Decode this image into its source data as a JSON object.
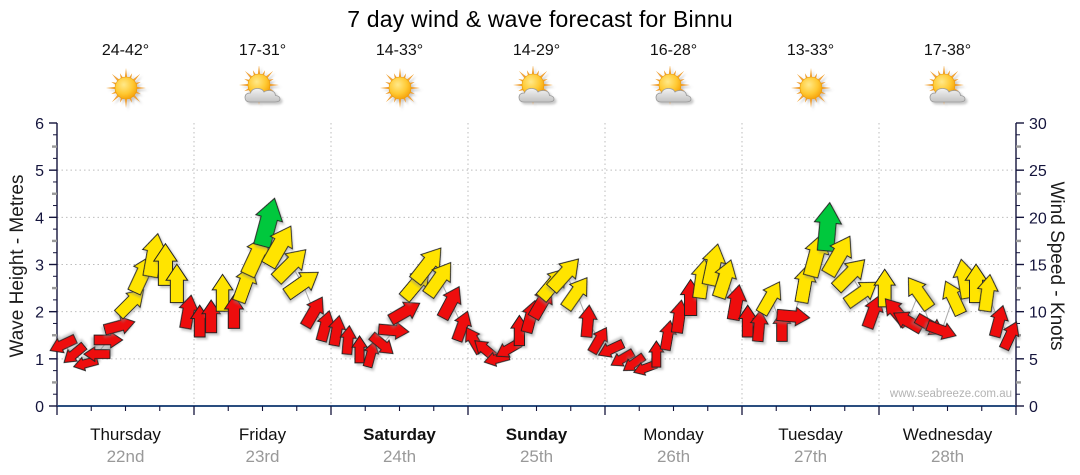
{
  "title": "7 day wind & wave forecast for Binnu",
  "watermark": "www.seabreeze.com.au",
  "axes": {
    "left_label": "Wave Height - Metres",
    "right_label": "Wind Speed - Knots",
    "left_ticks": [
      "0",
      "1",
      "2",
      "3",
      "4",
      "5",
      "6"
    ],
    "right_ticks": [
      "0",
      "5",
      "10",
      "15",
      "20",
      "25",
      "30"
    ]
  },
  "chart_data": {
    "type": "wind_arrow_timeseries",
    "ylim_left_metres": [
      0,
      6
    ],
    "ylim_right_knots": [
      0,
      30
    ],
    "grid": "dotted, horizontal each metre, vertical each day boundary",
    "legend_position": "none",
    "hours": [
      1,
      3,
      5,
      7,
      9,
      11,
      13,
      15,
      17,
      19,
      21,
      23
    ],
    "arrow_colors": {
      "red": "#ee0a0a",
      "yellow": "#ffe400",
      "green": "#00c83c"
    },
    "arrow_meaning": "arrow angle = wind direction, height on axis = wind speed knots",
    "days": [
      {
        "name": "Thursday",
        "date": "22nd",
        "temp": "24-42°",
        "icon": "sun",
        "weekend": false,
        "knots": [
          6.5,
          5.5,
          4.5,
          5.5,
          7,
          8.5,
          11,
          14,
          16,
          15,
          13,
          10
        ],
        "dirs_deg": [
          245,
          230,
          255,
          270,
          90,
          75,
          45,
          25,
          10,
          0,
          0,
          10
        ],
        "colors": [
          "red",
          "red",
          "red",
          "red",
          "red",
          "red",
          "yellow",
          "yellow",
          "yellow",
          "yellow",
          "yellow",
          "red"
        ]
      },
      {
        "name": "Friday",
        "date": "23rd",
        "temp": "17-31°",
        "icon": "sun-cloud",
        "weekend": false,
        "knots": [
          9,
          9.5,
          12,
          10,
          13,
          16,
          19.5,
          17,
          15,
          13,
          10,
          8.5
        ],
        "dirs_deg": [
          0,
          0,
          0,
          0,
          20,
          25,
          15,
          30,
          45,
          55,
          30,
          15
        ],
        "colors": [
          "red",
          "red",
          "yellow",
          "red",
          "yellow",
          "yellow",
          "green",
          "yellow",
          "yellow",
          "yellow",
          "red",
          "red"
        ]
      },
      {
        "name": "Saturday",
        "date": "24th",
        "temp": "14-33°",
        "icon": "sun",
        "weekend": true,
        "knots": [
          8,
          7,
          6,
          5.5,
          6.5,
          8,
          10,
          13,
          15,
          13.5,
          11,
          8.5
        ],
        "dirs_deg": [
          10,
          5,
          0,
          15,
          130,
          95,
          60,
          40,
          38,
          35,
          28,
          20
        ],
        "colors": [
          "red",
          "red",
          "red",
          "red",
          "red",
          "red",
          "red",
          "yellow",
          "yellow",
          "yellow",
          "red",
          "red"
        ]
      },
      {
        "name": "Sunday",
        "date": "25th",
        "temp": "14-29°",
        "icon": "sun-cloud",
        "weekend": true,
        "knots": [
          7,
          6,
          5,
          6,
          8,
          9.5,
          11,
          13,
          14,
          12,
          9,
          7
        ],
        "dirs_deg": [
          330,
          310,
          255,
          240,
          0,
          15,
          30,
          40,
          42,
          35,
          5,
          30
        ],
        "colors": [
          "red",
          "red",
          "red",
          "red",
          "red",
          "red",
          "red",
          "yellow",
          "yellow",
          "yellow",
          "red",
          "red"
        ]
      },
      {
        "name": "Monday",
        "date": "26th",
        "temp": "16-28°",
        "icon": "sun-cloud",
        "weekend": false,
        "knots": [
          6,
          5,
          4.5,
          4,
          5.5,
          7.5,
          9.5,
          11.5,
          13.5,
          15,
          13.5,
          11
        ],
        "dirs_deg": [
          245,
          240,
          235,
          250,
          0,
          10,
          8,
          0,
          8,
          12,
          18,
          10
        ],
        "colors": [
          "red",
          "red",
          "red",
          "red",
          "red",
          "red",
          "red",
          "red",
          "yellow",
          "yellow",
          "yellow",
          "red"
        ]
      },
      {
        "name": "Tuesday",
        "date": "27th",
        "temp": "13-33°",
        "icon": "sun",
        "weekend": false,
        "knots": [
          9,
          8.5,
          11.5,
          8.5,
          9.5,
          13,
          16,
          19,
          16,
          14,
          12,
          10
        ],
        "dirs_deg": [
          0,
          5,
          30,
          0,
          95,
          10,
          15,
          5,
          30,
          45,
          55,
          20
        ],
        "colors": [
          "red",
          "red",
          "yellow",
          "red",
          "red",
          "yellow",
          "yellow",
          "green",
          "yellow",
          "yellow",
          "yellow",
          "red"
        ]
      },
      {
        "name": "Wednesday",
        "date": "28th",
        "temp": "17-38°",
        "icon": "sun-cloud",
        "weekend": false,
        "knots": [
          12.5,
          10,
          9,
          12,
          8.5,
          8,
          11.5,
          13.5,
          13,
          12,
          9,
          7.5
        ],
        "dirs_deg": [
          0,
          320,
          300,
          325,
          120,
          110,
          335,
          350,
          0,
          8,
          15,
          25
        ],
        "colors": [
          "yellow",
          "red",
          "red",
          "yellow",
          "red",
          "red",
          "yellow",
          "yellow",
          "yellow",
          "yellow",
          "red",
          "red"
        ]
      }
    ]
  },
  "style_colors": {
    "axis_line": "#2a4d7f",
    "tick_and_label": "#14143c",
    "grid": "#bdbdbd",
    "day_name": "#111111",
    "day_date": "#999999",
    "sun_core": "#ffcc33",
    "sun_ray": "#f0a030",
    "cloud": "#d2d2d2"
  }
}
